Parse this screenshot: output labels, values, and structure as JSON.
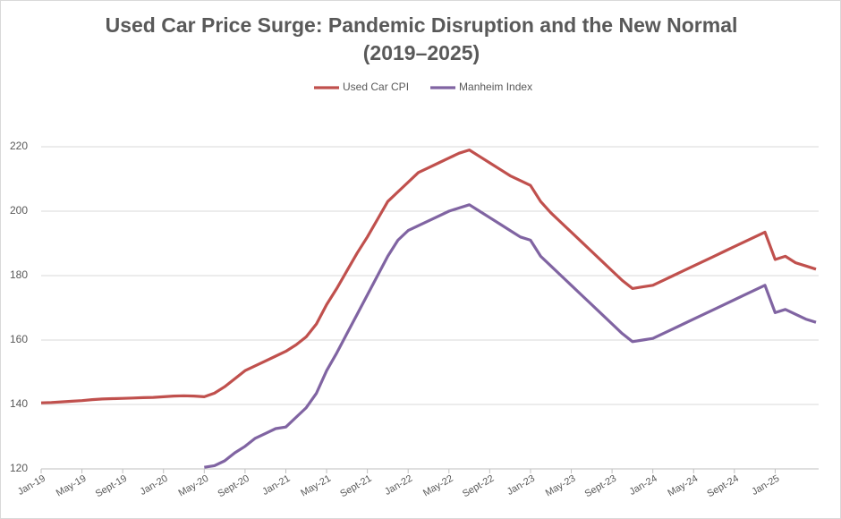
{
  "chart_data": {
    "type": "line",
    "title": "Used Car Price Surge: Pandemic Disruption and the New Normal (2019–2025)",
    "categories": [
      "Jan-19",
      null,
      null,
      null,
      "May-19",
      null,
      null,
      null,
      "Sept-19",
      null,
      null,
      null,
      "Jan-20",
      null,
      null,
      null,
      "May-20",
      null,
      null,
      null,
      "Sept-20",
      null,
      null,
      null,
      "Jan-21",
      null,
      null,
      null,
      "May-21",
      null,
      null,
      null,
      "Sept-21",
      null,
      null,
      null,
      "Jan-22",
      null,
      null,
      null,
      "May-22",
      null,
      null,
      null,
      "Sept-22",
      null,
      null,
      null,
      "Jan-23",
      null,
      null,
      null,
      "May-23",
      null,
      null,
      null,
      "Sept-23",
      null,
      null,
      null,
      "Jan-24",
      null,
      null,
      null,
      "May-24",
      null,
      null,
      null,
      "Sept-24",
      null,
      null,
      null,
      "Jan-25",
      null,
      null,
      null,
      null
    ],
    "series": [
      {
        "name": "Used Car CPI",
        "color": "#c0504d",
        "values": [
          140.5,
          140.6,
          140.8,
          141.0,
          141.2,
          141.5,
          141.7,
          141.8,
          141.9,
          142.0,
          142.1,
          142.2,
          142.4,
          142.6,
          142.7,
          142.6,
          142.4,
          143.5,
          145.5,
          148,
          150.5,
          152,
          153.5,
          155,
          156.5,
          158.5,
          161,
          165,
          171,
          176,
          181.5,
          187,
          192,
          197.5,
          203,
          206,
          209,
          212,
          213.5,
          215,
          216.5,
          218,
          219,
          217,
          215,
          213,
          211,
          209.5,
          208,
          203,
          199.5,
          196.5,
          193.5,
          190.5,
          187.5,
          184.5,
          181.5,
          178.5,
          176,
          176.5,
          177,
          178.5,
          180,
          181.5,
          183,
          184.5,
          186,
          187.5,
          189,
          190.5,
          192,
          193.5,
          185,
          186,
          184,
          183,
          182
        ]
      },
      {
        "name": "Manheim Index",
        "color": "#8064a2",
        "values": [
          null,
          null,
          null,
          null,
          null,
          null,
          null,
          null,
          null,
          null,
          null,
          null,
          null,
          null,
          null,
          null,
          120.5,
          121,
          122.5,
          125,
          127,
          129.5,
          131,
          132.5,
          133,
          136,
          139,
          143.5,
          150.5,
          156,
          162,
          168,
          174,
          180,
          186,
          191,
          194,
          195.5,
          197,
          198.5,
          200,
          201,
          202,
          200,
          198,
          196,
          194,
          192,
          191,
          186,
          183,
          180,
          177,
          174,
          171,
          168,
          165,
          162,
          159.5,
          160,
          160.5,
          162,
          163.5,
          165,
          166.5,
          168,
          169.5,
          171,
          172.5,
          174,
          175.5,
          177,
          168.5,
          169.5,
          168,
          166.5,
          165.5
        ]
      }
    ],
    "ylim": [
      120,
      220
    ],
    "yticks": [
      120,
      140,
      160,
      180,
      200,
      220
    ],
    "grid": true,
    "legend": "top"
  }
}
